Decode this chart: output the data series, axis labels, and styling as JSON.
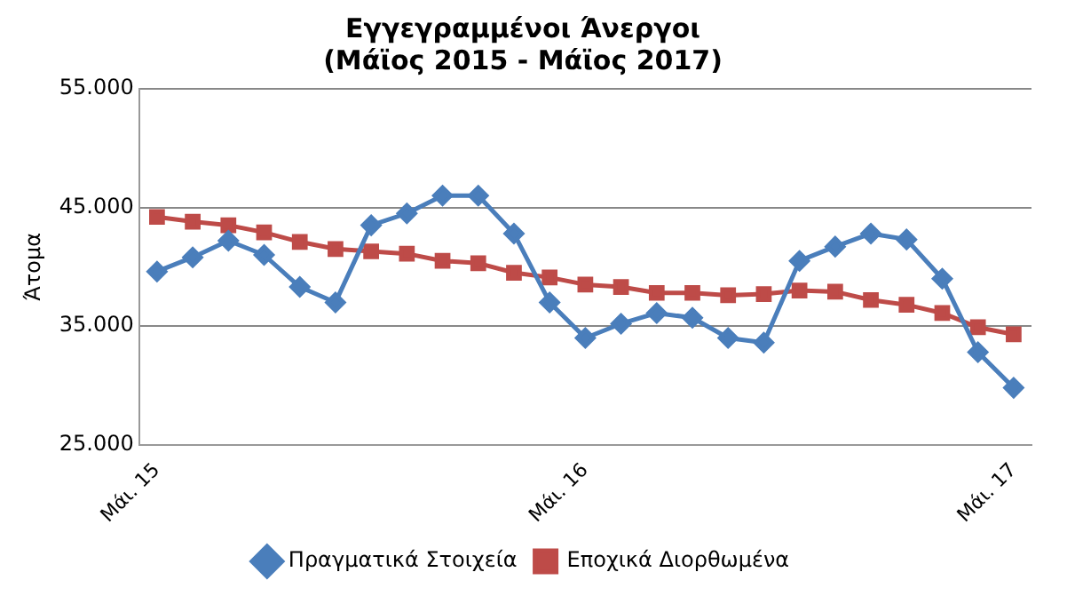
{
  "chart_data": {
    "type": "line",
    "title": "Εγγεγραμμένοι Άνεργοι\n(Μάϊος 2015 - Μάϊος 2017)",
    "ylabel": "Άτομα",
    "categories": [
      "Μάι. 15",
      null,
      null,
      null,
      null,
      null,
      null,
      null,
      null,
      null,
      null,
      null,
      "Μάι. 16",
      null,
      null,
      null,
      null,
      null,
      null,
      null,
      null,
      null,
      null,
      null,
      "Μάι. 17"
    ],
    "series": [
      {
        "name": "Πραγματικά Στοιχεία",
        "color": "#4a7ebb",
        "marker": "diamond",
        "values": [
          39600,
          40800,
          42200,
          41000,
          38300,
          37000,
          43500,
          44500,
          46000,
          46000,
          42800,
          37000,
          34000,
          35200,
          36100,
          35700,
          34000,
          33600,
          40500,
          41700,
          42800,
          42300,
          39000,
          32800,
          29800
        ]
      },
      {
        "name": "Εποχικά Διορθωμένα",
        "color": "#be4b48",
        "marker": "square",
        "values": [
          44200,
          43800,
          43500,
          42900,
          42100,
          41500,
          41300,
          41100,
          40500,
          40300,
          39500,
          39100,
          38500,
          38300,
          37800,
          37800,
          37600,
          37700,
          38000,
          37900,
          37200,
          36800,
          36100,
          34900,
          34300
        ]
      }
    ],
    "ylim": [
      25000,
      55000
    ],
    "yticks": [
      {
        "value": 25000,
        "label": "25.000"
      },
      {
        "value": 35000,
        "label": "35.000"
      },
      {
        "value": 45000,
        "label": "45.000"
      },
      {
        "value": 55000,
        "label": "55.000"
      }
    ],
    "grid": "y",
    "legend": "bottom",
    "line_style": "solid"
  }
}
